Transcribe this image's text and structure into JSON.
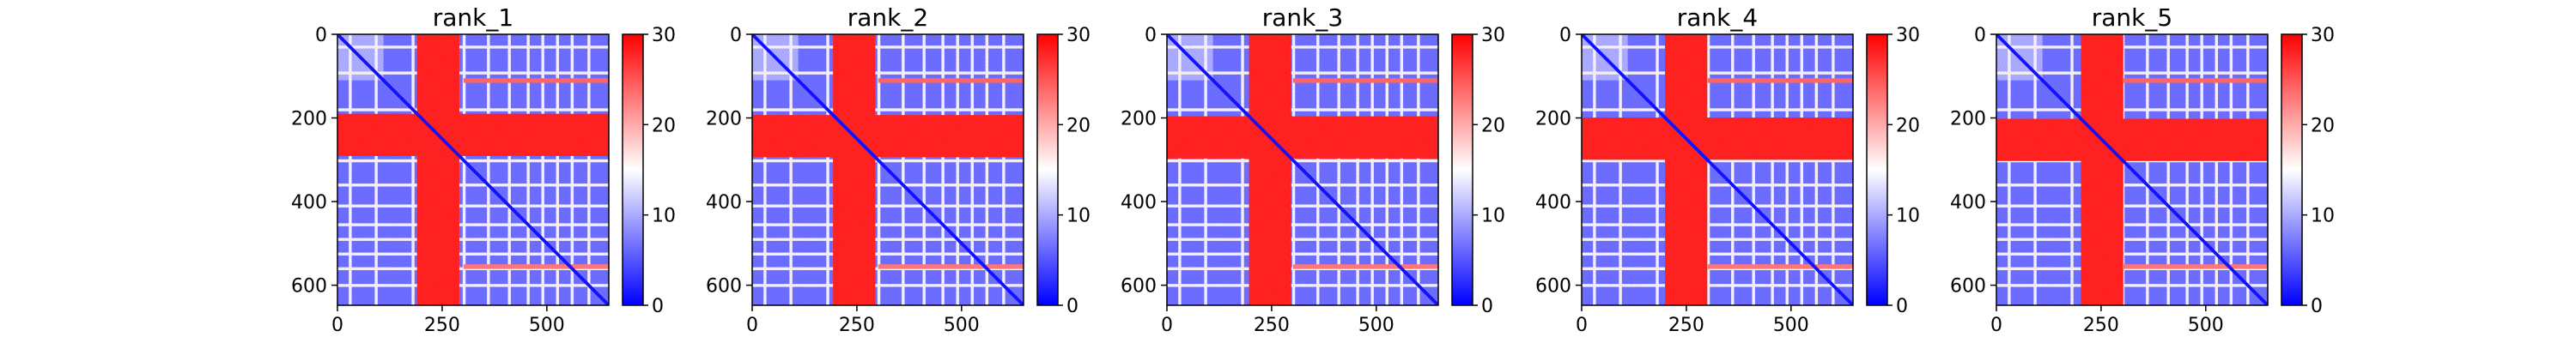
{
  "chart_data": [
    {
      "type": "heatmap",
      "title": "rank_1",
      "x_ticks": [
        "0",
        "250",
        "500"
      ],
      "y_ticks": [
        "0",
        "200",
        "400",
        "600"
      ],
      "xlim": [
        0,
        648
      ],
      "ylim": [
        648,
        0
      ],
      "colorbar": {
        "ticks": [
          "0",
          "10",
          "20",
          "30"
        ],
        "range": [
          0,
          30
        ],
        "colormap": "bwr"
      },
      "grid": false,
      "structure": {
        "size": 648,
        "high_bands": [
          [
            190,
            290
          ],
          [
            200,
            300
          ]
        ],
        "low_band": [
          110,
          175
        ],
        "dividers": [
          30,
          92,
          180,
          302,
          360,
          410,
          455,
          490,
          525,
          560,
          600
        ]
      }
    },
    {
      "type": "heatmap",
      "title": "rank_2",
      "x_ticks": [
        "0",
        "250",
        "500"
      ],
      "y_ticks": [
        "0",
        "200",
        "400",
        "600"
      ],
      "xlim": [
        0,
        648
      ],
      "ylim": [
        648,
        0
      ],
      "colorbar": {
        "ticks": [
          "0",
          "10",
          "20",
          "30"
        ],
        "range": [
          0,
          30
        ],
        "colormap": "bwr"
      },
      "grid": false
    },
    {
      "type": "heatmap",
      "title": "rank_3",
      "x_ticks": [
        "0",
        "250",
        "500"
      ],
      "y_ticks": [
        "0",
        "200",
        "400",
        "600"
      ],
      "xlim": [
        0,
        648
      ],
      "ylim": [
        648,
        0
      ],
      "colorbar": {
        "ticks": [
          "0",
          "10",
          "20",
          "30"
        ],
        "range": [
          0,
          30
        ],
        "colormap": "bwr"
      },
      "grid": false
    },
    {
      "type": "heatmap",
      "title": "rank_4",
      "x_ticks": [
        "0",
        "250",
        "500"
      ],
      "y_ticks": [
        "0",
        "200",
        "400",
        "600"
      ],
      "xlim": [
        0,
        648
      ],
      "ylim": [
        648,
        0
      ],
      "colorbar": {
        "ticks": [
          "0",
          "10",
          "20",
          "30"
        ],
        "range": [
          0,
          30
        ],
        "colormap": "bwr"
      },
      "grid": false
    },
    {
      "type": "heatmap",
      "title": "rank_5",
      "x_ticks": [
        "0",
        "250",
        "500"
      ],
      "y_ticks": [
        "0",
        "200",
        "400",
        "600"
      ],
      "xlim": [
        0,
        648
      ],
      "ylim": [
        648,
        0
      ],
      "colorbar": {
        "ticks": [
          "0",
          "10",
          "20",
          "30"
        ],
        "range": [
          0,
          30
        ],
        "colormap": "bwr"
      },
      "grid": false
    }
  ],
  "colors": {
    "low": "#0000ff",
    "mid": "#ffffff",
    "high": "#ff0000"
  }
}
